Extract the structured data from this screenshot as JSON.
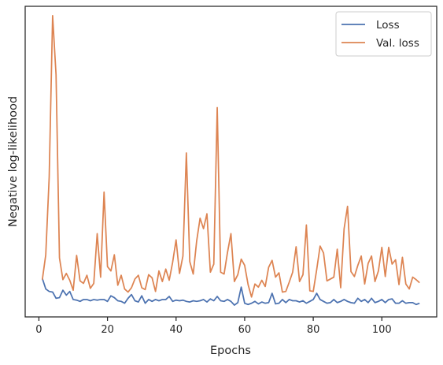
{
  "chart_data": {
    "type": "line",
    "xlabel": "Epochs",
    "ylabel": "Negative log-likelihood",
    "xlim": [
      -4,
      116
    ],
    "ylim": [
      0,
      100
    ],
    "xticks": [
      0,
      20,
      40,
      60,
      80,
      100
    ],
    "yticks_visible": false,
    "grid": false,
    "legend_position": "top-right",
    "series": [
      {
        "name": "Loss",
        "color": "#4c72b0",
        "x": [
          1,
          2,
          3,
          4,
          5,
          6,
          7,
          8,
          9,
          10,
          11,
          12,
          13,
          14,
          15,
          16,
          17,
          18,
          19,
          20,
          21,
          22,
          23,
          24,
          25,
          26,
          27,
          28,
          29,
          30,
          31,
          32,
          33,
          34,
          35,
          36,
          37,
          38,
          39,
          40,
          41,
          42,
          43,
          44,
          45,
          46,
          47,
          48,
          49,
          50,
          51,
          52,
          53,
          54,
          55,
          56,
          57,
          58,
          59,
          60,
          61,
          62,
          63,
          64,
          65,
          66,
          67,
          68,
          69,
          70,
          71,
          72,
          73,
          74,
          75,
          76,
          77,
          78,
          79,
          80,
          81,
          82,
          83,
          84,
          85,
          86,
          87,
          88,
          89,
          90,
          91,
          92,
          93,
          94,
          95,
          96,
          97,
          98,
          99,
          100,
          101,
          102,
          103,
          104,
          105,
          106,
          107,
          108,
          109,
          110,
          111
        ],
        "y": [
          12.4,
          9.0,
          8.2,
          8.0,
          6.0,
          6.2,
          8.6,
          7.0,
          8.2,
          5.6,
          5.4,
          5.0,
          5.6,
          5.6,
          5.2,
          5.6,
          5.4,
          5.6,
          5.6,
          5.0,
          6.8,
          6.2,
          5.2,
          5.0,
          4.4,
          6.0,
          7.2,
          5.2,
          4.8,
          6.8,
          4.4,
          5.6,
          5.0,
          5.6,
          5.2,
          5.6,
          5.6,
          6.6,
          5.0,
          5.4,
          5.2,
          5.4,
          5.0,
          4.8,
          5.2,
          5.0,
          5.2,
          5.6,
          4.8,
          5.8,
          5.2,
          6.6,
          5.2,
          5.0,
          5.6,
          5.0,
          3.8,
          4.6,
          9.6,
          4.4,
          4.0,
          4.4,
          5.0,
          4.2,
          4.8,
          4.4,
          4.6,
          7.6,
          4.2,
          4.4,
          5.6,
          4.6,
          5.6,
          5.2,
          5.2,
          4.8,
          5.2,
          4.4,
          5.0,
          5.6,
          7.6,
          5.6,
          5.0,
          4.4,
          4.6,
          5.6,
          4.6,
          5.0,
          5.6,
          5.0,
          4.6,
          4.4,
          6.0,
          5.0,
          5.6,
          4.6,
          6.0,
          4.6,
          5.0,
          5.6,
          4.6,
          5.6,
          5.8,
          4.4,
          4.4,
          5.2,
          4.4,
          4.6,
          4.6,
          4.0,
          4.4
        ]
      },
      {
        "name": "Val. loss",
        "color": "#dd8452",
        "x": [
          1,
          2,
          3,
          4,
          5,
          6,
          7,
          8,
          9,
          10,
          11,
          12,
          13,
          14,
          15,
          16,
          17,
          18,
          19,
          20,
          21,
          22,
          23,
          24,
          25,
          26,
          27,
          28,
          29,
          30,
          31,
          32,
          33,
          34,
          35,
          36,
          37,
          38,
          39,
          40,
          41,
          42,
          43,
          44,
          45,
          46,
          47,
          48,
          49,
          50,
          51,
          52,
          53,
          54,
          55,
          56,
          57,
          58,
          59,
          60,
          61,
          62,
          63,
          64,
          65,
          66,
          67,
          68,
          69,
          70,
          71,
          72,
          73,
          74,
          75,
          76,
          77,
          78,
          79,
          80,
          81,
          82,
          83,
          84,
          85,
          86,
          87,
          88,
          89,
          90,
          91,
          92,
          93,
          94,
          95,
          96,
          97,
          98,
          99,
          100,
          101,
          102,
          103,
          104,
          105,
          106,
          107,
          108,
          109,
          110,
          111
        ],
        "y": [
          12.0,
          20.0,
          45.0,
          97.0,
          78.0,
          19.0,
          12.0,
          14.0,
          11.8,
          8.6,
          19.8,
          11.6,
          10.8,
          13.4,
          9.2,
          10.8,
          26.8,
          12.8,
          40.2,
          16.2,
          14.8,
          20.0,
          10.2,
          13.4,
          9.0,
          8.0,
          9.4,
          12.2,
          13.4,
          9.4,
          8.8,
          13.6,
          12.6,
          8.2,
          14.8,
          11.4,
          15.4,
          11.8,
          17.6,
          24.8,
          14.0,
          19.6,
          52.8,
          17.8,
          13.8,
          24.4,
          31.8,
          28.4,
          33.2,
          14.4,
          17.0,
          67.4,
          14.4,
          13.8,
          20.8,
          26.8,
          11.4,
          13.6,
          18.6,
          16.6,
          10.4,
          6.4,
          10.6,
          9.6,
          11.8,
          9.8,
          16.0,
          18.2,
          12.8,
          14.2,
          8.0,
          8.2,
          11.2,
          14.4,
          22.6,
          11.4,
          13.6,
          29.6,
          8.4,
          8.2,
          15.2,
          22.8,
          20.6,
          11.6,
          12.2,
          12.8,
          21.8,
          9.4,
          28.4,
          35.6,
          14.6,
          13.0,
          16.6,
          19.6,
          10.6,
          17.2,
          19.6,
          11.4,
          14.8,
          22.4,
          13.0,
          22.4,
          17.0,
          18.4,
          10.4,
          19.2,
          10.6,
          9.0,
          12.8,
          12.0,
          11.0
        ]
      }
    ]
  }
}
